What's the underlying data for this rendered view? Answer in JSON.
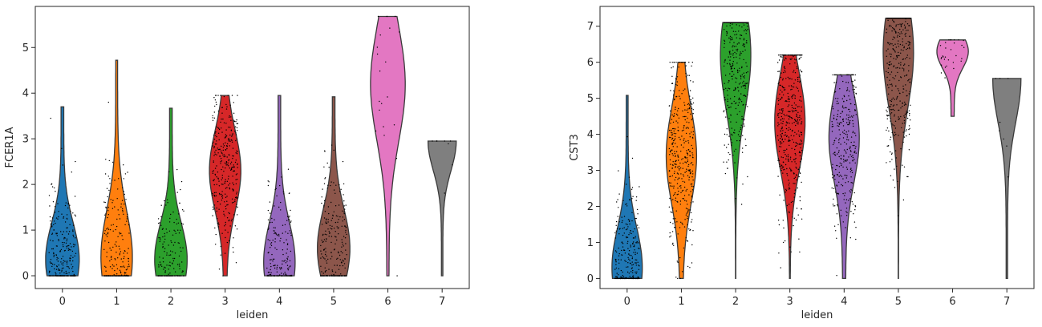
{
  "chart_data": [
    {
      "type": "violin",
      "xlabel": "leiden",
      "ylabel": "FCER1A",
      "categories": [
        "0",
        "1",
        "2",
        "3",
        "4",
        "5",
        "6",
        "7"
      ],
      "ylim": [
        -0.28,
        5.9
      ],
      "yticks": [
        0,
        1,
        2,
        3,
        4,
        5
      ],
      "series": [
        {
          "category": "0",
          "color": "#1f77b4",
          "min": 0,
          "max": 3.7,
          "peak": 0.35,
          "width": 0.62,
          "tail": 0.08,
          "dots": 280
        },
        {
          "category": "1",
          "color": "#ff7f0e",
          "min": 0,
          "max": 4.72,
          "peak": 0.4,
          "width": 0.58,
          "tail": 0.06,
          "dots": 230
        },
        {
          "category": "2",
          "color": "#2ca02c",
          "min": 0,
          "max": 3.67,
          "peak": 0.35,
          "width": 0.6,
          "tail": 0.08,
          "dots": 160
        },
        {
          "category": "3",
          "color": "#d62728",
          "min": 0,
          "max": 3.95,
          "peak": 2.3,
          "width": 0.58,
          "tail": 0.1,
          "dots": 320
        },
        {
          "category": "4",
          "color": "#9467bd",
          "min": 0,
          "max": 3.95,
          "peak": 0.3,
          "width": 0.58,
          "tail": 0.08,
          "dots": 200
        },
        {
          "category": "5",
          "color": "#8c564b",
          "min": 0,
          "max": 3.92,
          "peak": 0.6,
          "width": 0.6,
          "tail": 0.08,
          "dots": 240
        },
        {
          "category": "6",
          "color": "#e377c2",
          "min": 0,
          "max": 5.68,
          "peak": 4.2,
          "width": 0.64,
          "tail": 0.06,
          "dots": 20
        },
        {
          "category": "7",
          "color": "#7f7f7f",
          "min": 0,
          "max": 2.95,
          "peak": 2.95,
          "width": 0.52,
          "tail": 0.05,
          "dots": 8
        }
      ]
    },
    {
      "type": "violin",
      "xlabel": "leiden",
      "ylabel": "CST3",
      "categories": [
        "0",
        "1",
        "2",
        "3",
        "4",
        "5",
        "6",
        "7"
      ],
      "ylim": [
        -0.28,
        7.55
      ],
      "yticks": [
        0,
        1,
        2,
        3,
        4,
        5,
        6,
        7
      ],
      "series": [
        {
          "category": "0",
          "color": "#1f77b4",
          "min": 0,
          "max": 5.08,
          "peak": 0.3,
          "width": 0.56,
          "tail": 0.06,
          "dots": 320
        },
        {
          "category": "1",
          "color": "#ff7f0e",
          "min": 0,
          "max": 6.0,
          "peak": 3.4,
          "width": 0.56,
          "tail": 0.1,
          "dots": 380
        },
        {
          "category": "2",
          "color": "#2ca02c",
          "min": 0,
          "max": 7.1,
          "peak": 6.2,
          "width": 0.56,
          "tail": 0.01,
          "dots": 400
        },
        {
          "category": "3",
          "color": "#d62728",
          "min": 0,
          "max": 6.2,
          "peak": 4.35,
          "width": 0.56,
          "tail": 0.02,
          "dots": 420
        },
        {
          "category": "4",
          "color": "#9467bd",
          "min": 0,
          "max": 5.65,
          "peak": 3.9,
          "width": 0.56,
          "tail": 0.1,
          "dots": 300
        },
        {
          "category": "5",
          "color": "#8c564b",
          "min": 0,
          "max": 7.22,
          "peak": 6.28,
          "width": 0.56,
          "tail": 0.01,
          "dots": 420
        },
        {
          "category": "6",
          "color": "#e377c2",
          "min": 4.5,
          "max": 6.62,
          "peak": 6.3,
          "width": 0.58,
          "tail": 0.1,
          "dots": 30
        },
        {
          "category": "7",
          "color": "#7f7f7f",
          "min": 0,
          "max": 5.55,
          "peak": 5.55,
          "width": 0.52,
          "tail": 0.05,
          "dots": 8
        }
      ]
    }
  ]
}
